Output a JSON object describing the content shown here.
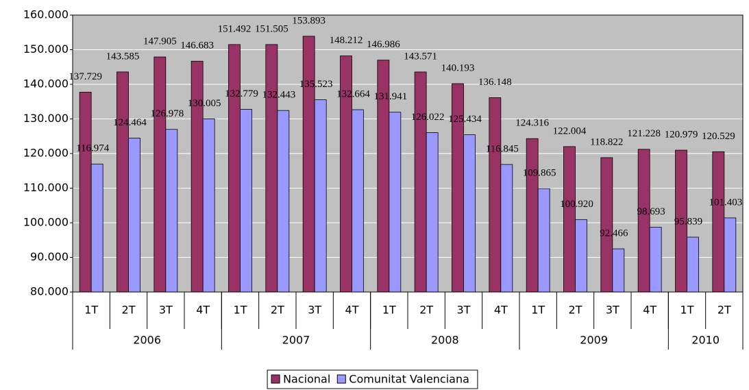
{
  "chart_data": {
    "type": "bar",
    "groups": [
      {
        "name": "2006",
        "categories": [
          "1T",
          "2T",
          "3T",
          "4T"
        ]
      },
      {
        "name": "2007",
        "categories": [
          "1T",
          "2T",
          "3T",
          "4T"
        ]
      },
      {
        "name": "2008",
        "categories": [
          "1T",
          "2T",
          "3T",
          "4T"
        ]
      },
      {
        "name": "2009",
        "categories": [
          "1T",
          "2T",
          "3T",
          "4T"
        ]
      },
      {
        "name": "2010",
        "categories": [
          "1T",
          "2T"
        ]
      }
    ],
    "series": [
      {
        "name": "Nacional",
        "color": "#993366",
        "values": [
          137729,
          143585,
          147905,
          146683,
          151492,
          151505,
          153893,
          148212,
          146986,
          143571,
          140193,
          136148,
          124316,
          122004,
          118822,
          121228,
          120979,
          120529
        ],
        "value_labels": [
          "137.729",
          "143.585",
          "147.905",
          "146.683",
          "151.492",
          "151.505",
          "153.893",
          "148.212",
          "146.986",
          "143.571",
          "140.193",
          "136.148",
          "124.316",
          "122.004",
          "118.822",
          "121.228",
          "120.979",
          "120.529"
        ]
      },
      {
        "name": "Comunitat Valenciana",
        "color": "#9999ff",
        "values": [
          116974,
          124464,
          126978,
          130005,
          132779,
          132443,
          135523,
          132664,
          131941,
          126022,
          125434,
          116845,
          109865,
          100920,
          92466,
          98693,
          95839,
          101403
        ],
        "value_labels": [
          "116.974",
          "124.464",
          "126.978",
          "130.005",
          "132.779",
          "132.443",
          "135.523",
          "132.664",
          "131.941",
          "126.022",
          "125.434",
          "116.845",
          "109.865",
          "100.920",
          "92.466",
          "98.693",
          "95.839",
          "101.403"
        ]
      }
    ],
    "ylim": [
      80000,
      160000
    ],
    "yticks": [
      {
        "value": 80000,
        "label": "80.000"
      },
      {
        "value": 90000,
        "label": "90.000"
      },
      {
        "value": 100000,
        "label": "100.000"
      },
      {
        "value": 110000,
        "label": "110.000"
      },
      {
        "value": 120000,
        "label": "120.000"
      },
      {
        "value": 130000,
        "label": "130.000"
      },
      {
        "value": 140000,
        "label": "140.000"
      },
      {
        "value": 150000,
        "label": "150.000"
      },
      {
        "value": 160000,
        "label": "160.000"
      }
    ],
    "grid": true,
    "legend": "bottom"
  }
}
